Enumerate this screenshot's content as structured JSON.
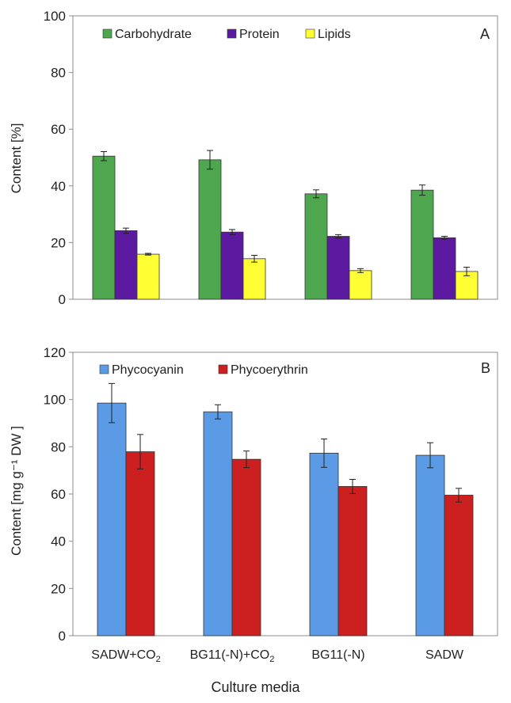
{
  "figure": {
    "xlabel": "Culture media",
    "categories": [
      "SADW+CO",
      "BG11(-N)+CO",
      "BG11(-N)",
      "SADW"
    ],
    "category_subscripts": [
      "2",
      "2",
      "",
      ""
    ]
  },
  "chart_data": [
    {
      "type": "bar",
      "panel_label": "A",
      "ylabel": "Content [%]",
      "ylim": [
        0,
        100
      ],
      "yticks": [
        0,
        20,
        40,
        60,
        80,
        100
      ],
      "grid": false,
      "legend_position": "top-left",
      "categories": [
        "SADW+CO2",
        "BG11(-N)+CO2",
        "BG11(-N)",
        "SADW"
      ],
      "series": [
        {
          "name": "Carbohydrate",
          "color": "#4ea64e",
          "values": [
            50.5,
            49.2,
            37.2,
            38.5
          ],
          "errors": [
            1.6,
            3.3,
            1.4,
            1.8
          ]
        },
        {
          "name": "Protein",
          "color": "#5b1aa0",
          "values": [
            24.2,
            23.7,
            22.2,
            21.7
          ],
          "errors": [
            0.9,
            0.9,
            0.6,
            0.5
          ]
        },
        {
          "name": "Lipids",
          "color": "#ffff33",
          "values": [
            15.9,
            14.3,
            10.1,
            9.8
          ],
          "errors": [
            0.3,
            1.2,
            0.7,
            1.5
          ]
        }
      ]
    },
    {
      "type": "bar",
      "panel_label": "B",
      "ylabel": "Content [mg g⁻¹ DW ]",
      "ylim": [
        0,
        120
      ],
      "yticks": [
        0,
        20,
        40,
        60,
        80,
        100,
        120
      ],
      "grid": false,
      "legend_position": "top-left",
      "categories": [
        "SADW+CO2",
        "BG11(-N)+CO2",
        "BG11(-N)",
        "SADW"
      ],
      "series": [
        {
          "name": "Phycocyanin",
          "color": "#5b9be6",
          "values": [
            98.5,
            94.8,
            77.3,
            76.4
          ],
          "errors": [
            8.3,
            3.0,
            6.0,
            5.3
          ]
        },
        {
          "name": "Phycoerythrin",
          "color": "#cc1f1f",
          "values": [
            77.9,
            74.7,
            63.2,
            59.5
          ],
          "errors": [
            7.3,
            3.5,
            3.0,
            2.9
          ]
        }
      ]
    }
  ]
}
